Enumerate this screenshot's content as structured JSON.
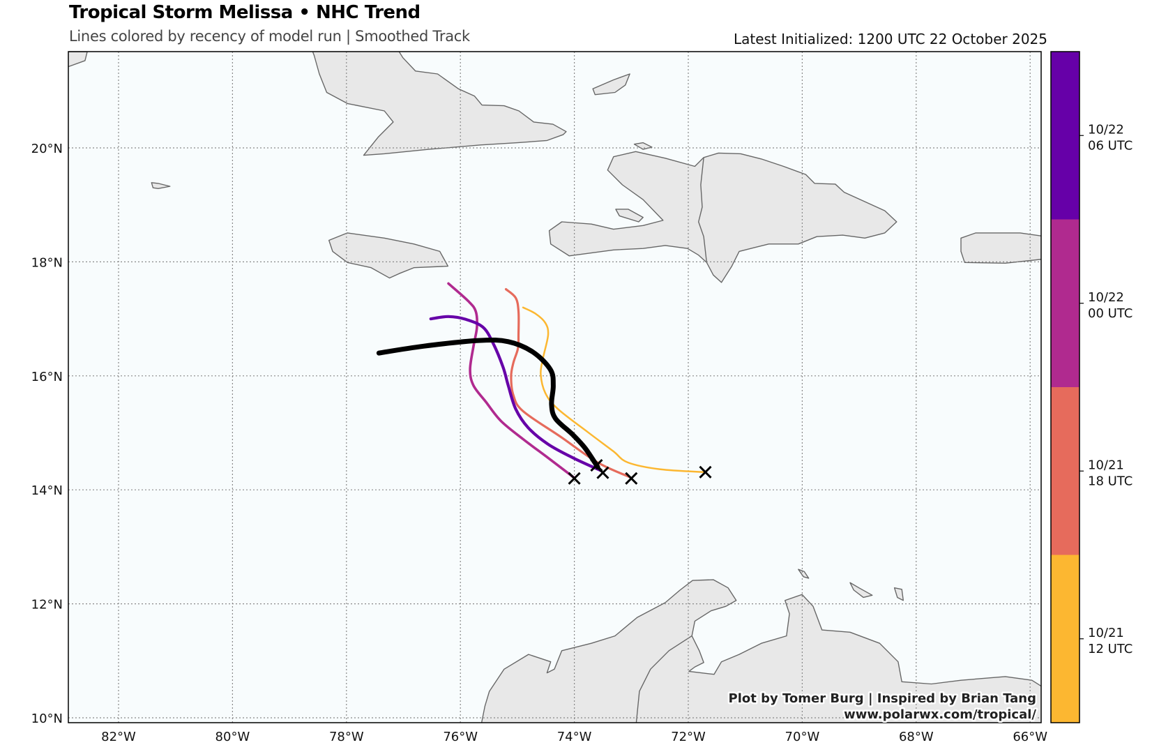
{
  "header": {
    "title": "Tropical Storm Melissa • NHC Trend",
    "subtitle": "Lines colored by recency of model run | Smoothed Track",
    "latest": "Latest Initialized: 1200 UTC 22 October 2025"
  },
  "credits": {
    "line1": "Plot by Tomer Burg | Inspired by Brian Tang",
    "line2": "www.polarwx.com/tropical/"
  },
  "colors": {
    "ocean": "#f8fcfd",
    "land": "#e8e8e8",
    "coast": "#666666",
    "grid": "#888888"
  },
  "chart_data": {
    "type": "line",
    "title": "Tropical Storm Melissa • NHC Trend",
    "xlabel": "",
    "ylabel": "",
    "xlim": [
      -82.86,
      -65.8
    ],
    "ylim": [
      9.9,
      21.68
    ],
    "grid": true,
    "x_ticks": [
      -82,
      -80,
      -78,
      -76,
      -74,
      -72,
      -70,
      -68,
      -66
    ],
    "x_tick_labels": [
      "82°W",
      "80°W",
      "78°W",
      "76°W",
      "74°W",
      "72°W",
      "70°W",
      "68°W",
      "66°W"
    ],
    "y_ticks": [
      10,
      12,
      14,
      16,
      18,
      20
    ],
    "y_tick_labels": [
      "10°N",
      "12°N",
      "14°N",
      "16°N",
      "18°N",
      "20°N"
    ],
    "colorbar": {
      "segments": [
        {
          "color": "#fcb731",
          "label_1": "10/21",
          "label_2": "12 UTC"
        },
        {
          "color": "#e66b5c",
          "label_1": "10/21",
          "label_2": "18 UTC"
        },
        {
          "color": "#b02a8f",
          "label_1": "10/22",
          "label_2": "00 UTC"
        },
        {
          "color": "#6600a8",
          "label_1": "10/22",
          "label_2": "06 UTC"
        }
      ]
    },
    "series": [
      {
        "name": "10/21 12 UTC",
        "color": "#fcb731",
        "width": 2.5,
        "points": [
          [
            -71.7,
            14.31
          ],
          [
            -72.49,
            14.36
          ],
          [
            -73.06,
            14.48
          ],
          [
            -73.32,
            14.68
          ],
          [
            -73.76,
            15.01
          ],
          [
            -74.29,
            15.42
          ],
          [
            -74.51,
            15.7
          ],
          [
            -74.59,
            16.03
          ],
          [
            -74.55,
            16.31
          ],
          [
            -74.46,
            16.72
          ],
          [
            -74.51,
            16.93
          ],
          [
            -74.68,
            17.09
          ],
          [
            -74.9,
            17.2
          ]
        ]
      },
      {
        "name": "10/21 18 UTC",
        "color": "#e66b5c",
        "width": 3.2,
        "points": [
          [
            -73.02,
            14.22
          ],
          [
            -73.59,
            14.48
          ],
          [
            -74.24,
            14.93
          ],
          [
            -74.9,
            15.38
          ],
          [
            -75.07,
            15.66
          ],
          [
            -75.11,
            15.99
          ],
          [
            -75.07,
            16.23
          ],
          [
            -74.99,
            16.48
          ],
          [
            -74.98,
            16.72
          ],
          [
            -74.98,
            17.13
          ],
          [
            -75.03,
            17.37
          ],
          [
            -75.2,
            17.52
          ]
        ]
      },
      {
        "name": "10/22 00 UTC",
        "color": "#b02a8f",
        "width": 3.6,
        "points": [
          [
            -74.0,
            14.21
          ],
          [
            -74.46,
            14.56
          ],
          [
            -74.9,
            14.89
          ],
          [
            -75.29,
            15.21
          ],
          [
            -75.55,
            15.54
          ],
          [
            -75.77,
            15.83
          ],
          [
            -75.83,
            16.11
          ],
          [
            -75.77,
            16.52
          ],
          [
            -75.71,
            16.85
          ],
          [
            -75.73,
            17.13
          ],
          [
            -75.86,
            17.31
          ],
          [
            -76.21,
            17.62
          ]
        ]
      },
      {
        "name": "10/22 06 UTC",
        "color": "#6600a8",
        "width": 4.2,
        "points": [
          [
            -73.54,
            14.34
          ],
          [
            -74.02,
            14.56
          ],
          [
            -74.46,
            14.8
          ],
          [
            -74.81,
            15.09
          ],
          [
            -75.03,
            15.42
          ],
          [
            -75.16,
            15.83
          ],
          [
            -75.25,
            16.15
          ],
          [
            -75.42,
            16.56
          ],
          [
            -75.6,
            16.85
          ],
          [
            -75.9,
            16.99
          ],
          [
            -76.21,
            17.04
          ],
          [
            -76.52,
            17.0
          ]
        ]
      },
      {
        "name": "10/22 12 UTC (latest)",
        "color": "#000000",
        "width": 7,
        "points": [
          [
            -73.59,
            14.4
          ],
          [
            -73.81,
            14.73
          ],
          [
            -74.03,
            14.97
          ],
          [
            -74.33,
            15.25
          ],
          [
            -74.4,
            15.5
          ],
          [
            -74.37,
            15.83
          ],
          [
            -74.42,
            16.11
          ],
          [
            -74.73,
            16.42
          ],
          [
            -75.16,
            16.6
          ],
          [
            -75.68,
            16.62
          ],
          [
            -76.65,
            16.52
          ],
          [
            -77.43,
            16.4
          ]
        ]
      }
    ],
    "initial_positions": [
      [
        -71.7,
        14.31
      ],
      [
        -73.0,
        14.2
      ],
      [
        -74.0,
        14.2
      ],
      [
        -73.5,
        14.3
      ],
      [
        -73.61,
        14.43
      ]
    ]
  }
}
